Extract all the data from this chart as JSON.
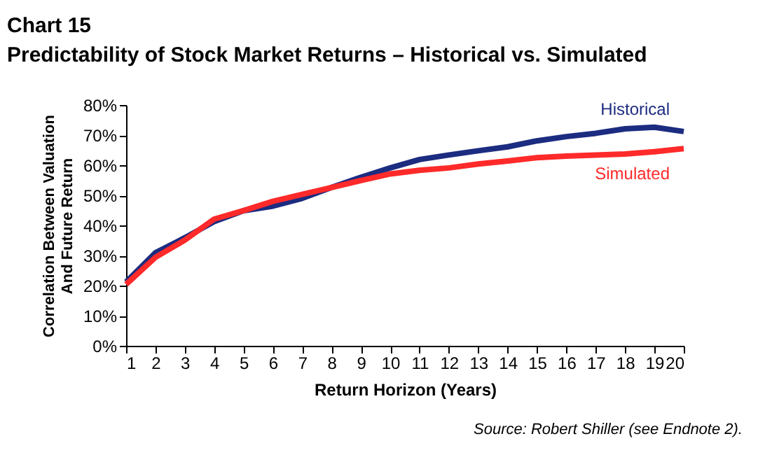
{
  "chart_data": {
    "type": "line",
    "title": "Chart 15",
    "subtitle": "Predictability of Stock Market Returns – Historical vs. Simulated",
    "xlabel": "Return Horizon (Years)",
    "ylabel": "Correlation Between Valuation And Future Return",
    "x": [
      1,
      2,
      3,
      4,
      5,
      6,
      7,
      8,
      9,
      10,
      11,
      12,
      13,
      14,
      15,
      16,
      17,
      18,
      19,
      20
    ],
    "series": [
      {
        "name": "Historical",
        "color": "#1c2c80",
        "values": [
          21.2,
          30.9,
          35.9,
          41.3,
          44.9,
          46.4,
          49.0,
          52.6,
          56.0,
          59.1,
          61.9,
          63.4,
          64.8,
          66.1,
          68.1,
          69.5,
          70.6,
          72.1,
          72.6,
          71.2
        ]
      },
      {
        "name": "Simulated",
        "color": "#ff2a2a",
        "values": [
          20.4,
          29.4,
          35.1,
          42.1,
          44.9,
          48.0,
          50.3,
          52.6,
          54.9,
          57.1,
          58.3,
          59.1,
          60.4,
          61.4,
          62.5,
          63.0,
          63.4,
          63.7,
          64.5,
          65.5
        ]
      }
    ],
    "xlim": [
      1,
      20
    ],
    "xticks": [
      1,
      2,
      3,
      4,
      5,
      6,
      7,
      8,
      9,
      10,
      11,
      12,
      13,
      14,
      15,
      16,
      17,
      18,
      19,
      20
    ],
    "ylim": [
      0,
      80
    ],
    "yticks": [
      {
        "value": 0,
        "label": "0%"
      },
      {
        "value": 10,
        "label": "10%"
      },
      {
        "value": 20,
        "label": "20%"
      },
      {
        "value": 30,
        "label": "30%"
      },
      {
        "value": 40,
        "label": "40%"
      },
      {
        "value": 50,
        "label": "50%"
      },
      {
        "value": 60,
        "label": "60%"
      },
      {
        "value": 70,
        "label": "70%"
      },
      {
        "value": 80,
        "label": "80%"
      }
    ],
    "grid": false,
    "marker": "none",
    "line_style": "solid",
    "annotations": [
      "Source: Robert Shiller (see Endnote 2)."
    ]
  }
}
